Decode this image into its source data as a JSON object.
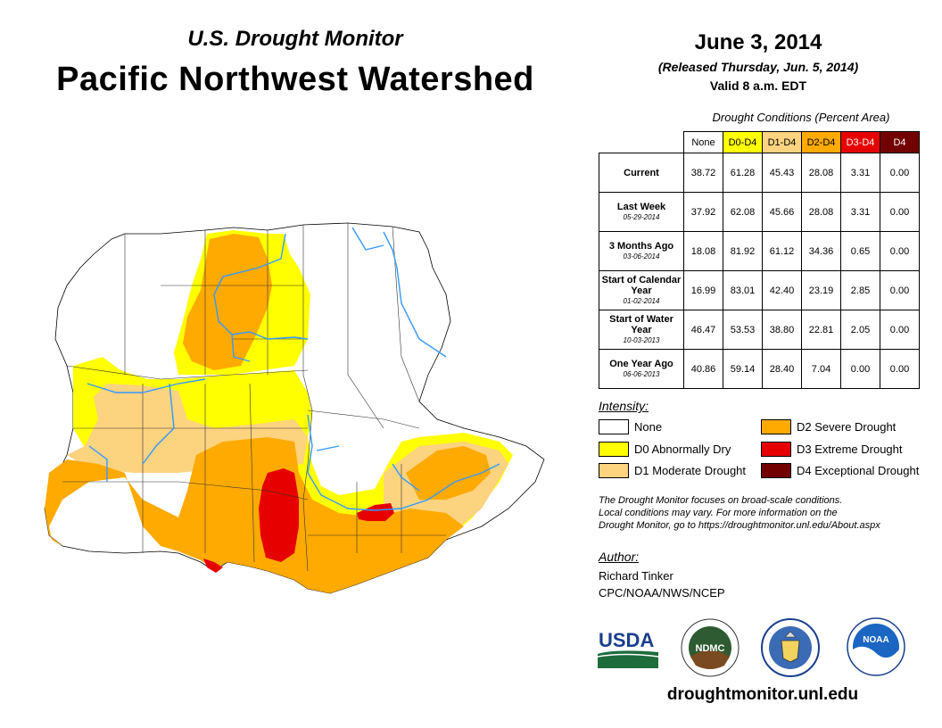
{
  "header": {
    "subtitle": "U.S. Drought Monitor",
    "title": "Pacific Northwest Watershed",
    "date": "June 3, 2014",
    "released": "(Released Thursday, Jun. 5, 2014)",
    "valid": "Valid 8 a.m. EDT"
  },
  "table": {
    "title": "Drought Conditions (Percent Area)",
    "columns": [
      "None",
      "D0-D4",
      "D1-D4",
      "D2-D4",
      "D3-D4",
      "D4"
    ],
    "column_colors": [
      "#ffffff",
      "#ffff00",
      "#fcd37f",
      "#ffaa00",
      "#e60000",
      "#730000"
    ],
    "rows": [
      {
        "label": "Current",
        "date": "",
        "values": [
          "38.72",
          "61.28",
          "45.43",
          "28.08",
          "3.31",
          "0.00"
        ]
      },
      {
        "label": "Last Week",
        "date": "05-29-2014",
        "values": [
          "37.92",
          "62.08",
          "45.66",
          "28.08",
          "3.31",
          "0.00"
        ]
      },
      {
        "label": "3 Months Ago",
        "date": "03-06-2014",
        "values": [
          "18.08",
          "81.92",
          "61.12",
          "34.36",
          "0.65",
          "0.00"
        ]
      },
      {
        "label": "Start of Calendar Year",
        "date": "01-02-2014",
        "values": [
          "16.99",
          "83.01",
          "42.40",
          "23.19",
          "2.85",
          "0.00"
        ]
      },
      {
        "label": "Start of Water Year",
        "date": "10-03-2013",
        "values": [
          "46.47",
          "53.53",
          "38.80",
          "22.81",
          "2.05",
          "0.00"
        ]
      },
      {
        "label": "One Year Ago",
        "date": "06-06-2013",
        "values": [
          "40.86",
          "59.14",
          "28.40",
          "7.04",
          "0.00",
          "0.00"
        ]
      }
    ]
  },
  "legend": {
    "title": "Intensity:",
    "items": [
      {
        "label": "None",
        "color": "#ffffff"
      },
      {
        "label": "D0 Abnormally Dry",
        "color": "#ffff00"
      },
      {
        "label": "D1 Moderate Drought",
        "color": "#fcd37f"
      },
      {
        "label": "D2 Severe Drought",
        "color": "#ffaa00"
      },
      {
        "label": "D3 Extreme Drought",
        "color": "#e60000"
      },
      {
        "label": "D4 Exceptional Drought",
        "color": "#730000"
      }
    ]
  },
  "note": {
    "line1": "The Drought Monitor focuses on broad-scale conditions.",
    "line2": "Local conditions may vary. For more information on the",
    "line3": "Drought Monitor, go to https://droughtmonitor.unl.edu/About.aspx"
  },
  "author": {
    "title": "Author:",
    "name": "Richard Tinker",
    "org": "CPC/NOAA/NWS/NCEP"
  },
  "logos": {
    "usda": "USDA",
    "ndmc": "NDMC",
    "noaa": "NOAA"
  },
  "footer_url": "droughtmonitor.unl.edu",
  "colors": {
    "none": "#ffffff",
    "d0": "#ffff00",
    "d1": "#fcd37f",
    "d2": "#ffaa00",
    "d3": "#e60000",
    "d4": "#730000",
    "river": "#3399ff"
  }
}
